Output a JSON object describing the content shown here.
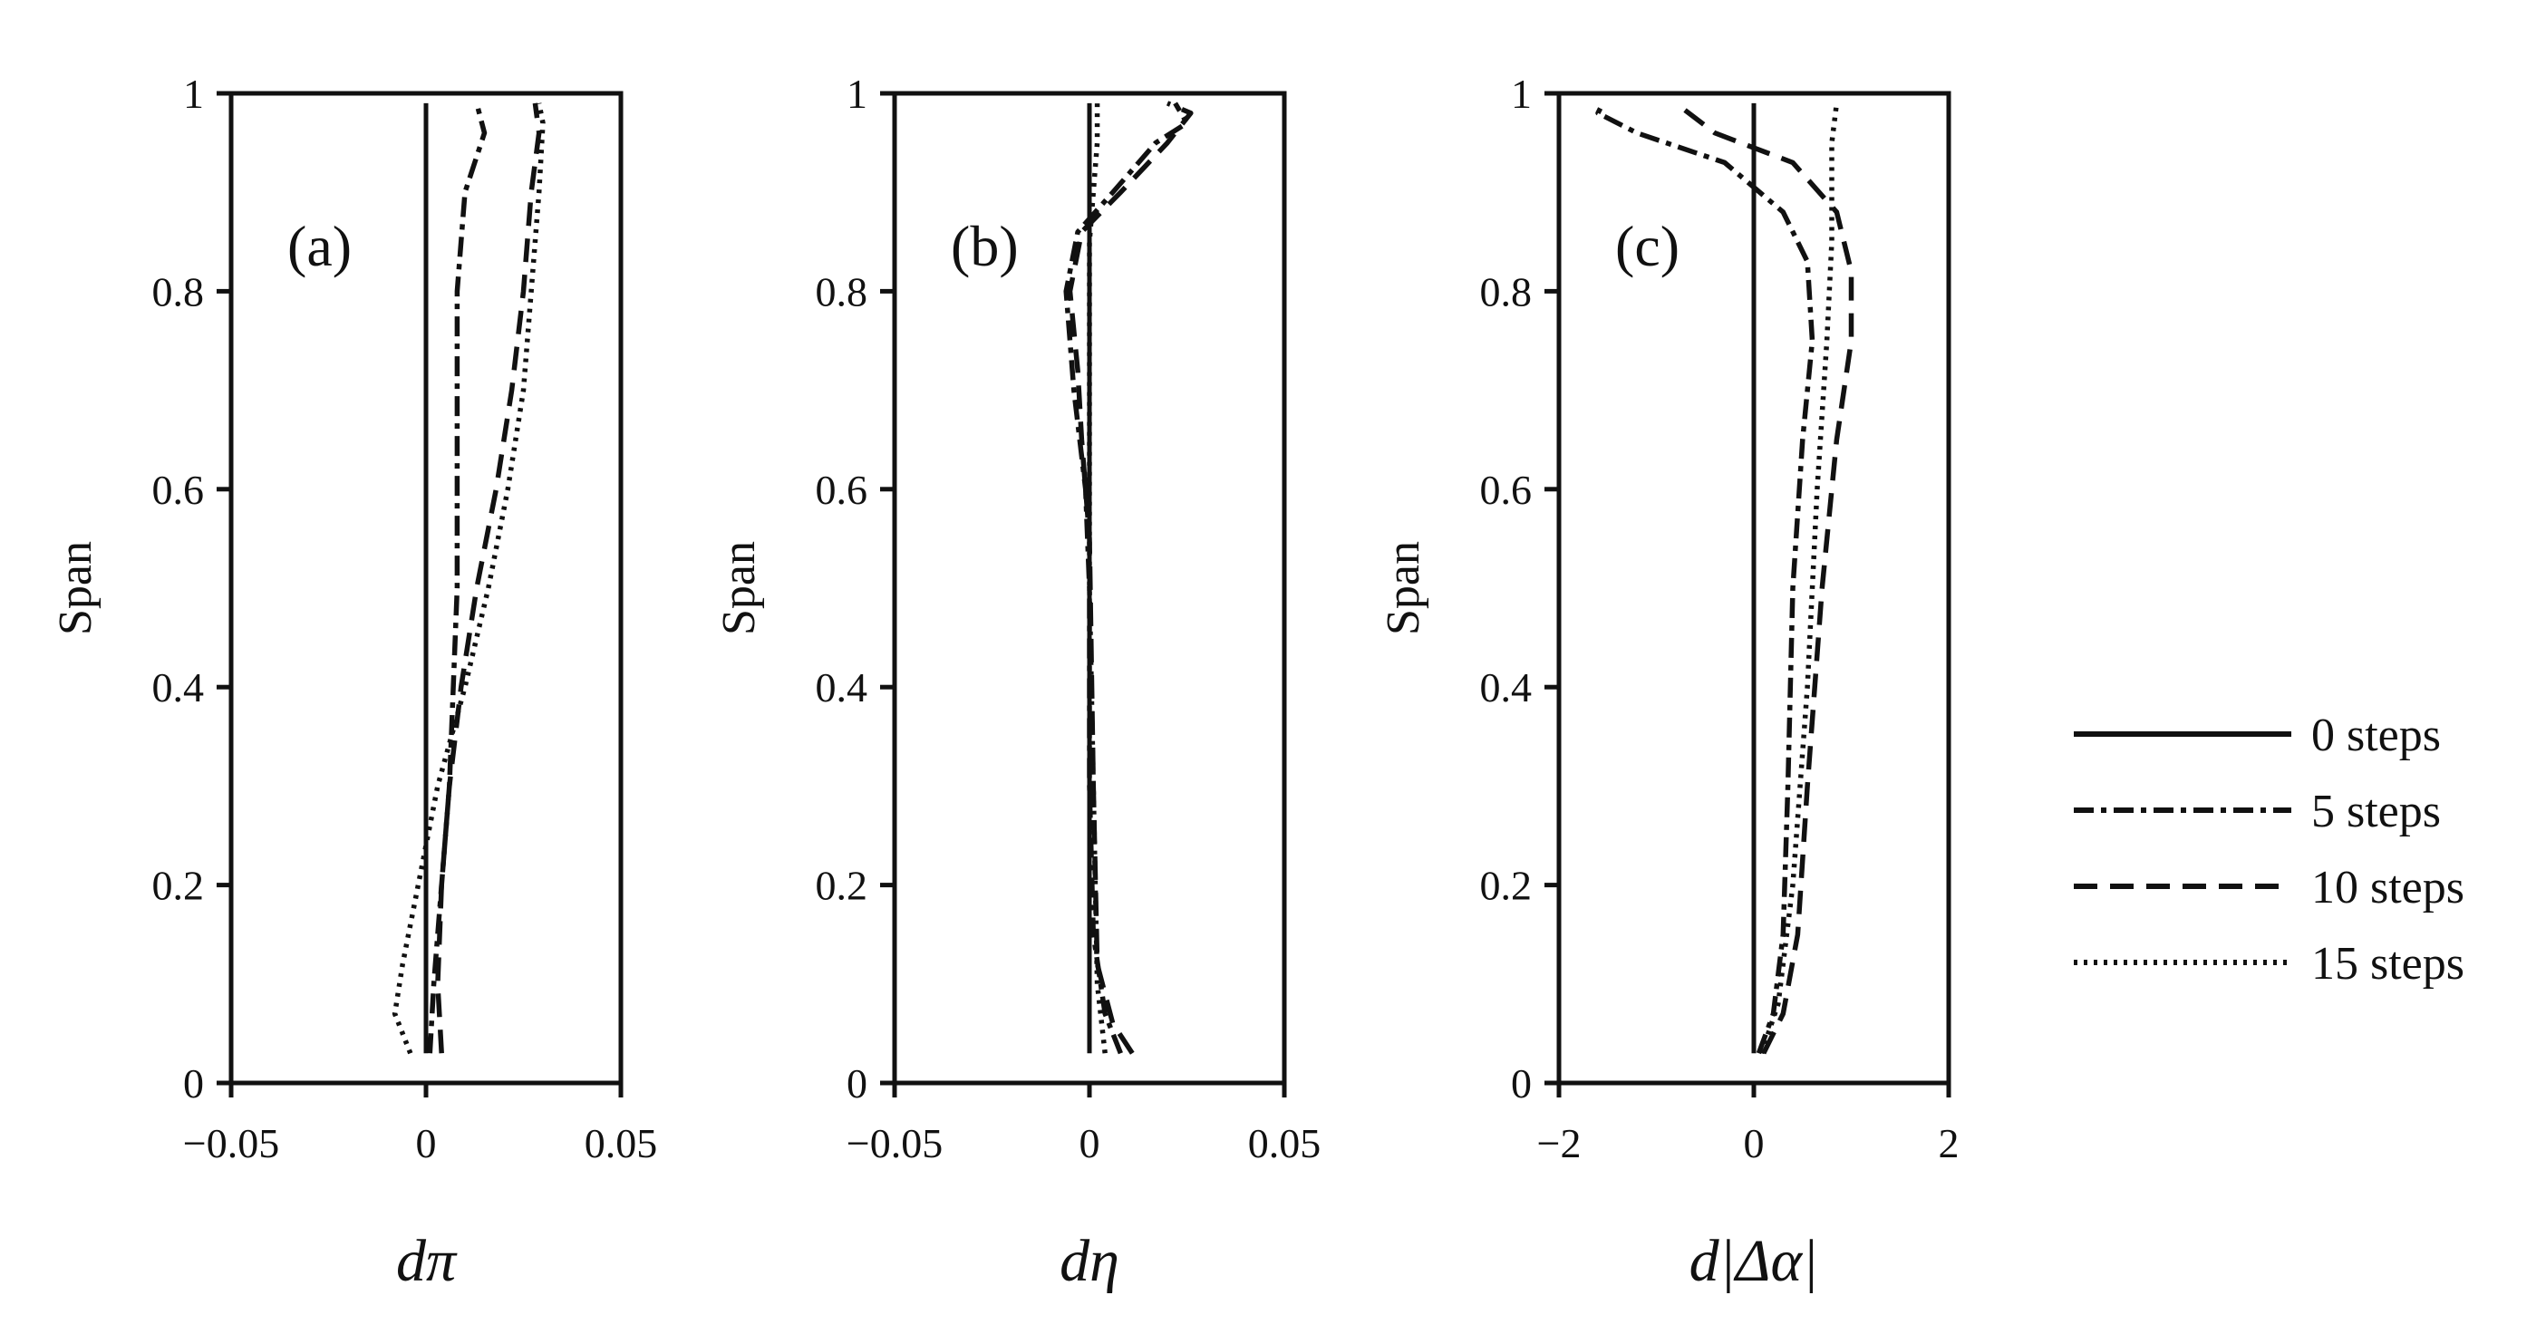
{
  "figure": {
    "legend": [
      {
        "label": "0 steps",
        "style": "solid"
      },
      {
        "label": "5 steps",
        "style": "dashdot"
      },
      {
        "label": "10 steps",
        "style": "dashed"
      },
      {
        "label": "15 steps",
        "style": "dotted"
      }
    ]
  },
  "chart_data": [
    {
      "type": "line",
      "panel_label": "(a)",
      "xlabel": "dπ",
      "ylabel": "Span",
      "xlim": [
        -0.05,
        0.05
      ],
      "ylim": [
        0,
        1
      ],
      "xticks": [
        "−0.05",
        "0",
        "0.05"
      ],
      "yticks": [
        "0",
        "0.2",
        "0.4",
        "0.6",
        "0.8",
        "1"
      ],
      "series": [
        {
          "name": "0 steps",
          "style": "solid",
          "points": [
            [
              0,
              0.03
            ],
            [
              0,
              0.99
            ]
          ]
        },
        {
          "name": "5 steps",
          "style": "dashdot",
          "points": [
            [
              0.001,
              0.03
            ],
            [
              0.002,
              0.1
            ],
            [
              0.004,
              0.2
            ],
            [
              0.006,
              0.3
            ],
            [
              0.007,
              0.4
            ],
            [
              0.008,
              0.5
            ],
            [
              0.008,
              0.6
            ],
            [
              0.008,
              0.7
            ],
            [
              0.008,
              0.8
            ],
            [
              0.01,
              0.9
            ],
            [
              0.015,
              0.96
            ],
            [
              0.013,
              0.99
            ]
          ]
        },
        {
          "name": "10 steps",
          "style": "dashed",
          "points": [
            [
              0.004,
              0.03
            ],
            [
              0.003,
              0.1
            ],
            [
              0.004,
              0.2
            ],
            [
              0.006,
              0.3
            ],
            [
              0.009,
              0.4
            ],
            [
              0.013,
              0.5
            ],
            [
              0.018,
              0.6
            ],
            [
              0.022,
              0.7
            ],
            [
              0.025,
              0.8
            ],
            [
              0.027,
              0.9
            ],
            [
              0.029,
              0.96
            ],
            [
              0.028,
              0.99
            ]
          ]
        },
        {
          "name": "15 steps",
          "style": "dotted",
          "points": [
            [
              -0.004,
              0.03
            ],
            [
              -0.008,
              0.07
            ],
            [
              -0.006,
              0.12
            ],
            [
              -0.002,
              0.2
            ],
            [
              0.003,
              0.3
            ],
            [
              0.01,
              0.4
            ],
            [
              0.016,
              0.5
            ],
            [
              0.021,
              0.6
            ],
            [
              0.025,
              0.7
            ],
            [
              0.027,
              0.8
            ],
            [
              0.029,
              0.9
            ],
            [
              0.03,
              0.97
            ],
            [
              0.029,
              0.99
            ]
          ]
        }
      ]
    },
    {
      "type": "line",
      "panel_label": "(b)",
      "xlabel": "dη",
      "ylabel": "Span",
      "xlim": [
        -0.05,
        0.05
      ],
      "ylim": [
        0,
        1
      ],
      "xticks": [
        "−0.05",
        "0",
        "0.05"
      ],
      "yticks": [
        "0",
        "0.2",
        "0.4",
        "0.6",
        "0.8",
        "1"
      ],
      "series": [
        {
          "name": "0 steps",
          "style": "solid",
          "points": [
            [
              0,
              0.03
            ],
            [
              0,
              0.99
            ]
          ]
        },
        {
          "name": "5 steps",
          "style": "dashdot",
          "points": [
            [
              0.008,
              0.03
            ],
            [
              0.004,
              0.07
            ],
            [
              0.001,
              0.15
            ],
            [
              0,
              0.3
            ],
            [
              0,
              0.5
            ],
            [
              -0.001,
              0.6
            ],
            [
              -0.004,
              0.7
            ],
            [
              -0.006,
              0.8
            ],
            [
              -0.003,
              0.86
            ],
            [
              0.006,
              0.9
            ],
            [
              0.017,
              0.95
            ],
            [
              0.025,
              0.97
            ],
            [
              0.022,
              0.99
            ]
          ]
        },
        {
          "name": "10 steps",
          "style": "dashed",
          "points": [
            [
              0.011,
              0.03
            ],
            [
              0.006,
              0.06
            ],
            [
              0.002,
              0.12
            ],
            [
              0.001,
              0.3
            ],
            [
              0,
              0.55
            ],
            [
              -0.002,
              0.65
            ],
            [
              -0.003,
              0.72
            ],
            [
              -0.005,
              0.8
            ],
            [
              -0.002,
              0.86
            ],
            [
              0.008,
              0.9
            ],
            [
              0.02,
              0.95
            ],
            [
              0.026,
              0.98
            ],
            [
              0.02,
              0.99
            ]
          ]
        },
        {
          "name": "15 steps",
          "style": "dotted",
          "points": [
            [
              0.004,
              0.03
            ],
            [
              0.002,
              0.1
            ],
            [
              0.001,
              0.3
            ],
            [
              0,
              0.5
            ],
            [
              0,
              0.7
            ],
            [
              0,
              0.85
            ],
            [
              0.002,
              0.95
            ],
            [
              0.002,
              0.99
            ]
          ]
        }
      ]
    },
    {
      "type": "line",
      "panel_label": "(c)",
      "xlabel": "d|Δα|",
      "ylabel": "Span",
      "xlim": [
        -2,
        2
      ],
      "ylim": [
        0,
        1
      ],
      "xticks": [
        "−2",
        "0",
        "2"
      ],
      "yticks": [
        "0",
        "0.2",
        "0.4",
        "0.6",
        "0.8",
        "1"
      ],
      "series": [
        {
          "name": "0 steps",
          "style": "solid",
          "points": [
            [
              0,
              0.03
            ],
            [
              0,
              0.99
            ]
          ]
        },
        {
          "name": "5 steps",
          "style": "dashdot",
          "points": [
            [
              0.05,
              0.03
            ],
            [
              0.2,
              0.07
            ],
            [
              0.3,
              0.15
            ],
            [
              0.35,
              0.3
            ],
            [
              0.4,
              0.5
            ],
            [
              0.5,
              0.65
            ],
            [
              0.6,
              0.75
            ],
            [
              0.55,
              0.83
            ],
            [
              0.3,
              0.88
            ],
            [
              -0.3,
              0.93
            ],
            [
              -1.2,
              0.96
            ],
            [
              -1.6,
              0.98
            ],
            [
              -1.55,
              0.99
            ]
          ]
        },
        {
          "name": "10 steps",
          "style": "dashed",
          "points": [
            [
              0.1,
              0.03
            ],
            [
              0.3,
              0.07
            ],
            [
              0.45,
              0.15
            ],
            [
              0.55,
              0.3
            ],
            [
              0.7,
              0.5
            ],
            [
              0.85,
              0.65
            ],
            [
              1.0,
              0.75
            ],
            [
              1.0,
              0.82
            ],
            [
              0.85,
              0.88
            ],
            [
              0.4,
              0.93
            ],
            [
              -0.4,
              0.96
            ],
            [
              -0.8,
              0.99
            ]
          ]
        },
        {
          "name": "15 steps",
          "style": "dotted",
          "points": [
            [
              0.08,
              0.03
            ],
            [
              0.25,
              0.08
            ],
            [
              0.4,
              0.2
            ],
            [
              0.55,
              0.4
            ],
            [
              0.65,
              0.6
            ],
            [
              0.75,
              0.75
            ],
            [
              0.8,
              0.85
            ],
            [
              0.8,
              0.95
            ],
            [
              0.85,
              0.99
            ]
          ]
        }
      ]
    }
  ]
}
